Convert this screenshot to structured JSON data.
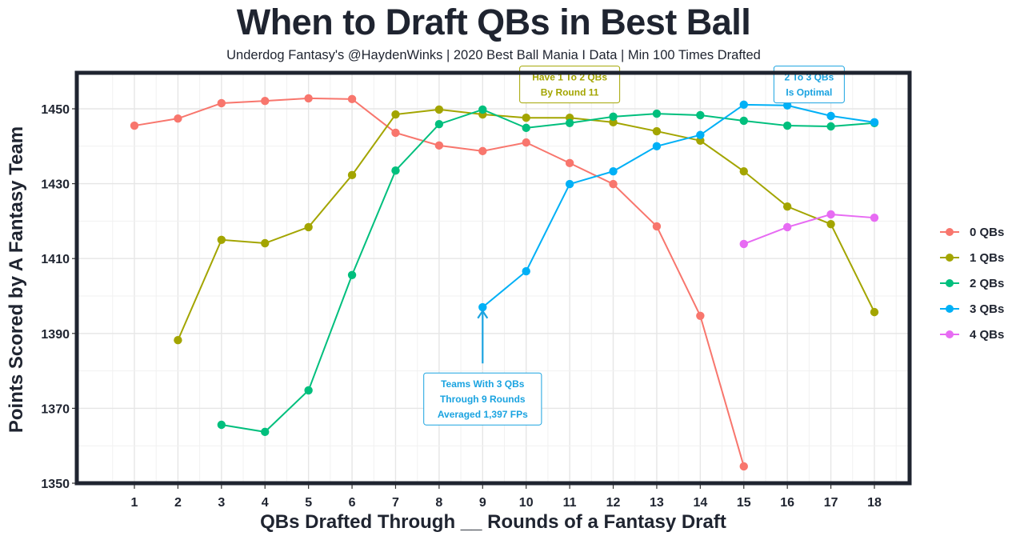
{
  "header": {
    "title": "When to Draft QBs in Best Ball",
    "subtitle": "Underdog Fantasy's @HaydenWinks | 2020 Best Ball Mania I Data | Min 100 Times Drafted"
  },
  "chart_data": {
    "type": "line",
    "title": "When to Draft QBs in Best Ball",
    "subtitle": "Underdog Fantasy's @HaydenWinks | 2020 Best Ball Mania I Data | Min 100 Times Drafted",
    "xlabel": "QBs Drafted Through __ Rounds of a Fantasy Draft",
    "ylabel": "Points Scored by A Fantasy Team",
    "x": [
      1,
      2,
      3,
      4,
      5,
      6,
      7,
      8,
      9,
      10,
      11,
      12,
      13,
      14,
      15,
      16,
      17,
      18
    ],
    "x_ticks": [
      "1",
      "2",
      "3",
      "4",
      "5",
      "6",
      "7",
      "8",
      "9",
      "10",
      "11",
      "12",
      "13",
      "14",
      "15",
      "16",
      "17",
      "18"
    ],
    "xlim": [
      -0.4,
      19.9
    ],
    "ylim": [
      1350,
      1459
    ],
    "y_ticks": [
      "1350",
      "1370",
      "1390",
      "1410",
      "1430",
      "1450"
    ],
    "y_tick_values": [
      1350,
      1370,
      1390,
      1410,
      1430,
      1450
    ],
    "grid": true,
    "legend_position": "right",
    "series": [
      {
        "name": "0 QBs",
        "color": "#F8766D",
        "x": [
          1,
          2,
          3,
          4,
          5,
          6,
          7,
          8,
          9,
          10,
          11,
          12,
          13,
          14,
          15
        ],
        "values": [
          1445.5,
          1447.4,
          1451.5,
          1452.1,
          1452.8,
          1452.6,
          1443.6,
          1440.2,
          1438.7,
          1441.0,
          1435.5,
          1429.9,
          1418.6,
          1394.7,
          1354.5
        ]
      },
      {
        "name": "1 QBs",
        "color": "#A3A500",
        "x": [
          2,
          3,
          4,
          5,
          6,
          7,
          8,
          9,
          10,
          11,
          12,
          13,
          14,
          15,
          16,
          17,
          18
        ],
        "values": [
          1388.2,
          1415.0,
          1414.1,
          1418.4,
          1432.3,
          1448.5,
          1449.8,
          1448.5,
          1447.6,
          1447.6,
          1446.4,
          1444.0,
          1441.5,
          1433.3,
          1423.9,
          1419.2,
          1395.7
        ]
      },
      {
        "name": "2 QBs",
        "color": "#00BF7D",
        "x": [
          3,
          4,
          5,
          6,
          7,
          8,
          9,
          10,
          11,
          12,
          13,
          14,
          15,
          16,
          17,
          18
        ],
        "values": [
          1365.6,
          1363.7,
          1374.8,
          1405.6,
          1433.5,
          1445.9,
          1449.8,
          1444.9,
          1446.2,
          1447.9,
          1448.7,
          1448.3,
          1446.8,
          1445.5,
          1445.3,
          1446.2
        ]
      },
      {
        "name": "3 QBs",
        "color": "#00B0F6",
        "x": [
          9,
          10,
          11,
          12,
          13,
          14,
          15,
          16,
          17,
          18
        ],
        "values": [
          1397.0,
          1406.6,
          1429.9,
          1433.3,
          1440.0,
          1443.0,
          1451.1,
          1450.9,
          1448.1,
          1446.4
        ]
      },
      {
        "name": "4 QBs",
        "color": "#E76BF3",
        "x": [
          15,
          16,
          17,
          18
        ],
        "values": [
          1413.9,
          1418.4,
          1421.8,
          1420.9
        ]
      }
    ],
    "annotations": [
      {
        "name": "have-1-to-2-qbs",
        "lines": [
          "Have 1 To 2 QBs",
          "By Round 11"
        ],
        "color": "#A3A500",
        "x": 11,
        "y": 1456.5
      },
      {
        "name": "2-to-3-qbs-optimal",
        "lines": [
          "2 To 3 QBs",
          "Is Optimal"
        ],
        "color": "#1AA3E0",
        "x": 16.5,
        "y": 1456.5
      },
      {
        "name": "teams-with-3-qbs",
        "lines": [
          "Teams With 3 QBs",
          "Through 9 Rounds",
          "Averaged 1,397 FPs"
        ],
        "color": "#1AA3E0",
        "x": 9,
        "y": 1372.5,
        "arrow": {
          "x": 9,
          "y_from": 1382,
          "y_to": 1396
        }
      }
    ]
  }
}
